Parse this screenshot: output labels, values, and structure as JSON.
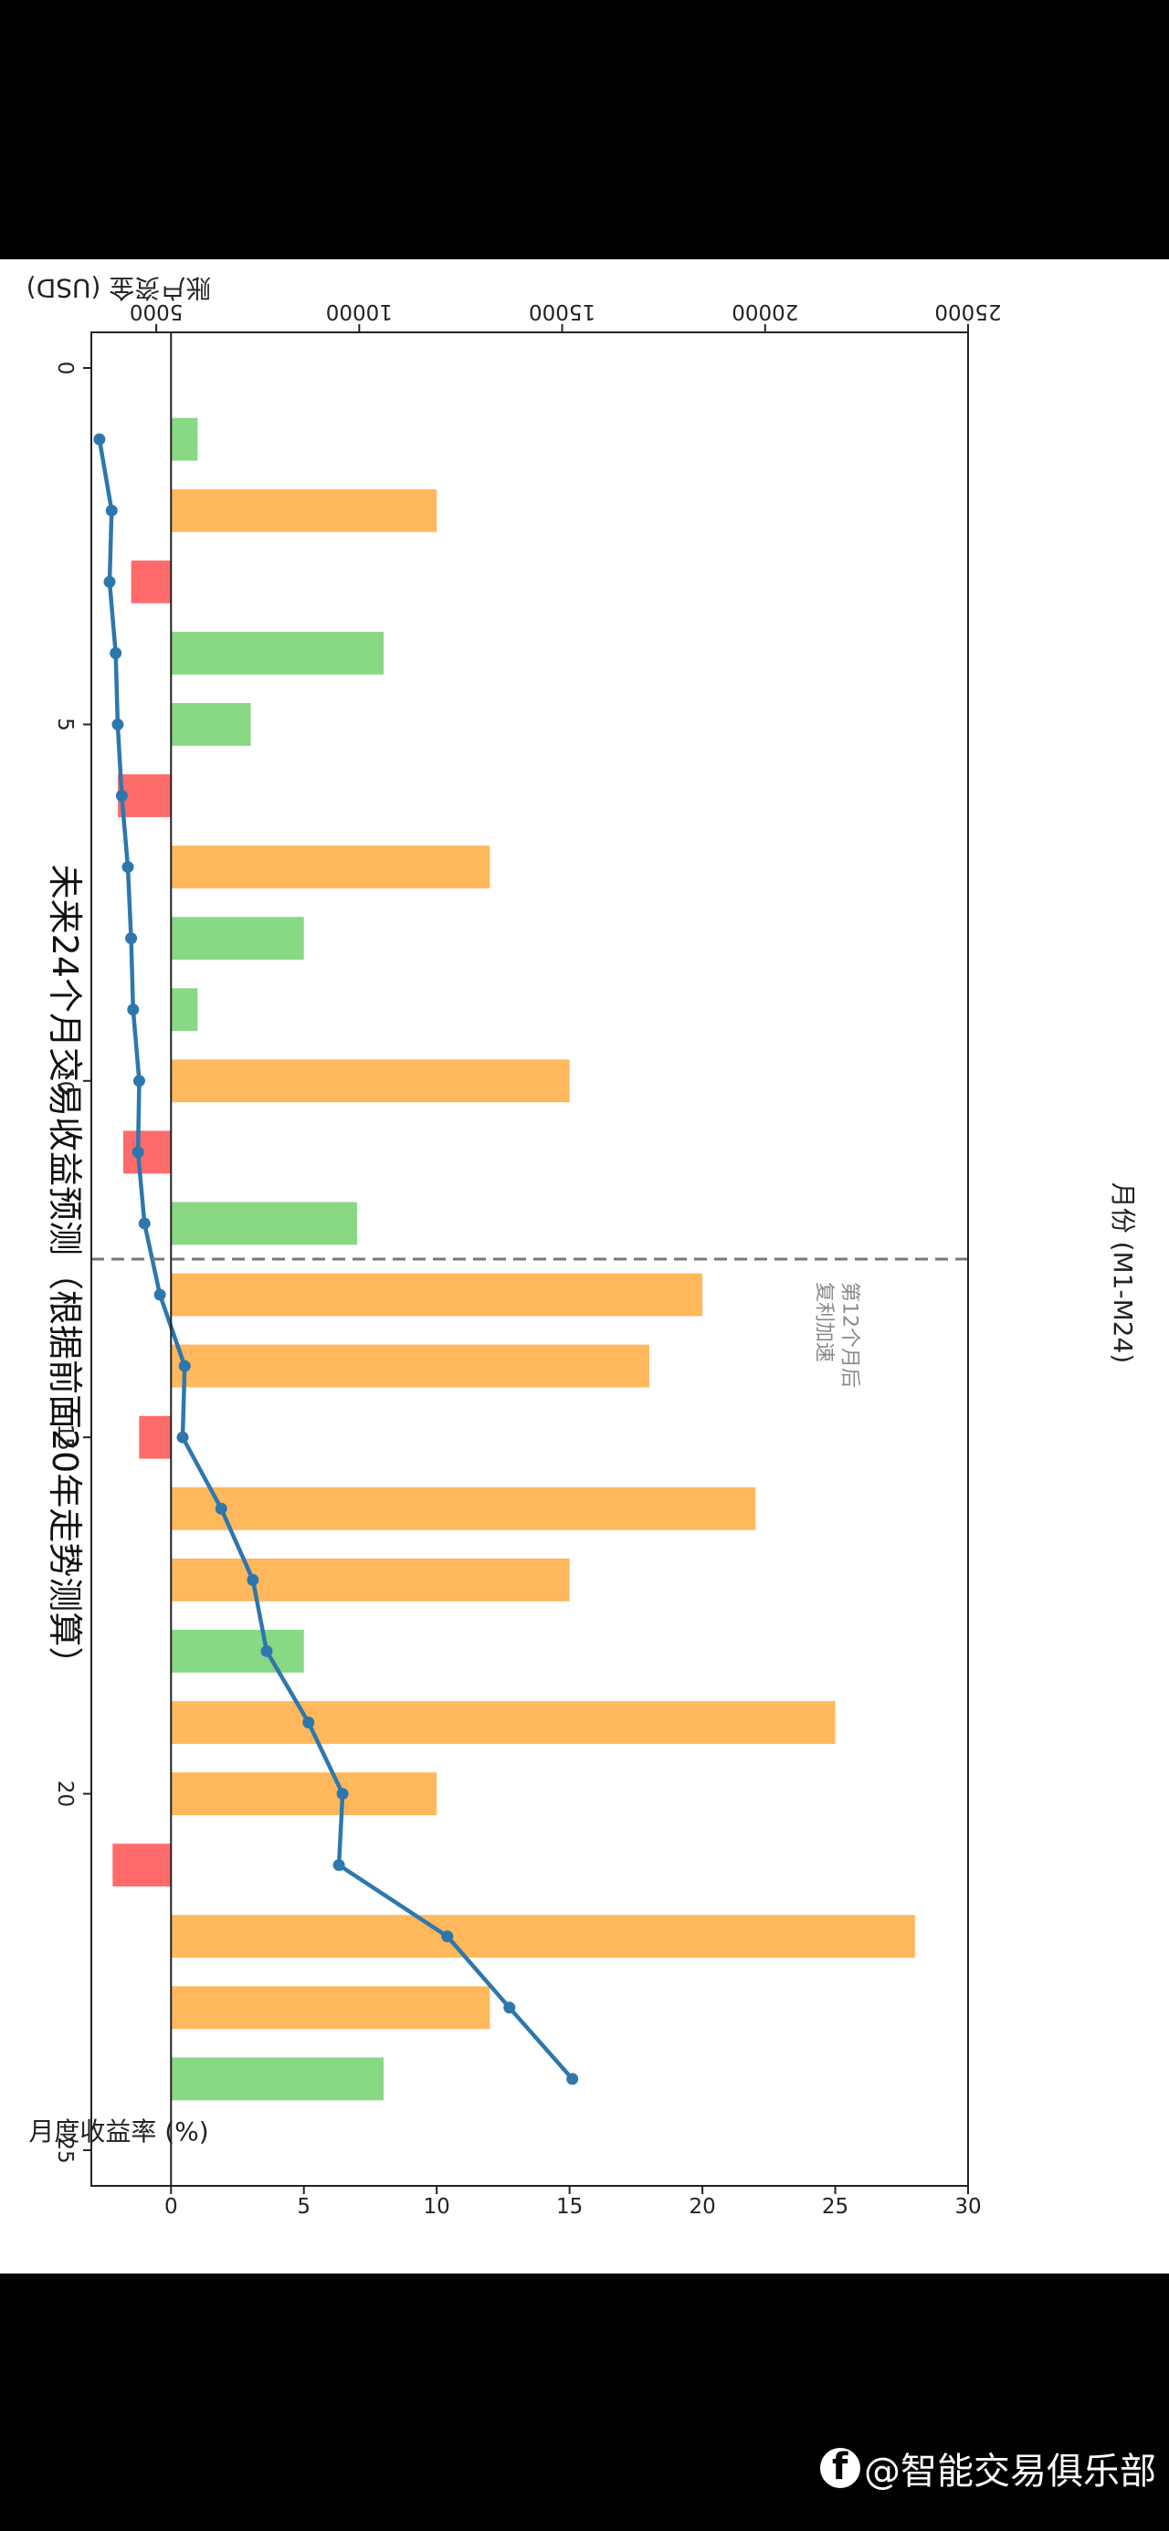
{
  "chart_data": {
    "type": "bar+line",
    "title": "未来24个月交易收益预测（根据前面20年走势测算）",
    "xlabel": "月份 (M1-M24)",
    "ylabel_left": "月度收益率 (%)",
    "ylabel_right": "账户资金 (USD)",
    "x_ticks": [
      "0",
      "5",
      "10",
      "15",
      "20",
      "25"
    ],
    "y_left_ticks": [
      "0",
      "5",
      "10",
      "15",
      "20",
      "25",
      "30"
    ],
    "y_right_ticks": [
      "5000",
      "10000",
      "15000",
      "20000",
      "25000"
    ],
    "xlim": [
      -0.5,
      25.5
    ],
    "ylim_left": [
      -3,
      30
    ],
    "ylim_right": [
      3400,
      25000
    ],
    "x_tick_values": [
      0,
      5,
      10,
      15,
      20,
      25
    ],
    "y_left_tick_values": [
      0,
      5,
      10,
      15,
      20,
      25,
      30
    ],
    "y_right_tick_values": [
      5000,
      10000,
      15000,
      20000,
      25000
    ],
    "months": [
      1,
      2,
      3,
      4,
      5,
      6,
      7,
      8,
      9,
      10,
      11,
      12,
      13,
      14,
      15,
      16,
      17,
      18,
      19,
      20,
      21,
      22,
      23,
      24
    ],
    "monthly_return_pct": [
      1,
      10,
      -1.5,
      8,
      3,
      -2,
      12,
      5,
      1,
      15,
      -1.8,
      7,
      20,
      18,
      -1.2,
      22,
      15,
      5,
      25,
      10,
      -2.2,
      28,
      12,
      8
    ],
    "bar_colors": [
      "#88d884",
      "#ffb85c",
      "#ff6b6b",
      "#88d884",
      "#88d884",
      "#ff6b6b",
      "#ffb85c",
      "#88d884",
      "#88d884",
      "#ffb85c",
      "#ff6b6b",
      "#88d884",
      "#ffb85c",
      "#ffb85c",
      "#ff6b6b",
      "#ffb85c",
      "#ffb85c",
      "#88d884",
      "#ffb85c",
      "#ffb85c",
      "#ff6b6b",
      "#ffb85c",
      "#ffb85c",
      "#88d884"
    ],
    "account_balance_usd": [
      3600,
      3900,
      3850,
      4000,
      4050,
      4150,
      4300,
      4380,
      4430,
      4580,
      4550,
      4710,
      5090,
      5700,
      5650,
      6600,
      7380,
      7720,
      8750,
      9590,
      9500,
      12170,
      13700,
      15250
    ],
    "line_color": "#2e77ad",
    "vline_x": 12.5,
    "annotation": [
      "第12个月后",
      "复利加速"
    ]
  },
  "watermark": {
    "icon": "facebook-icon",
    "text": "@智能交易俱乐部"
  }
}
